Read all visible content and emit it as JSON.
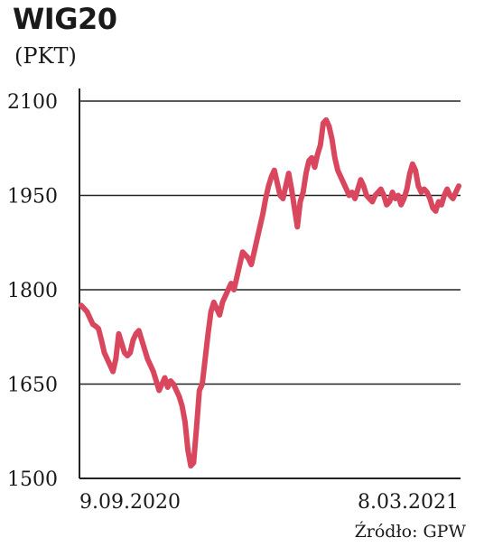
{
  "chart_data": {
    "type": "line",
    "title": "WIG20",
    "subtitle": "(PKT)",
    "xlabel": "",
    "ylabel": "",
    "ylim": [
      1500,
      2100
    ],
    "yticks": [
      "1500",
      "1650",
      "1800",
      "1950",
      "2100"
    ],
    "xtick_labels": [
      "9.09.2020",
      "8.03.2021"
    ],
    "grid": "horizontal",
    "legend": "none",
    "line_color": "#d9475e",
    "series": [
      {
        "values": [
          1775,
          1770,
          1765,
          1755,
          1745,
          1742,
          1738,
          1720,
          1700,
          1690,
          1680,
          1670,
          1690,
          1730,
          1715,
          1700,
          1695,
          1700,
          1720,
          1730,
          1735,
          1720,
          1705,
          1690,
          1680,
          1670,
          1655,
          1640,
          1650,
          1660,
          1645,
          1655,
          1650,
          1640,
          1630,
          1615,
          1590,
          1545,
          1520,
          1525,
          1580,
          1640,
          1650,
          1690,
          1730,
          1765,
          1780,
          1770,
          1760,
          1780,
          1790,
          1800,
          1810,
          1800,
          1820,
          1840,
          1860,
          1855,
          1850,
          1840,
          1860,
          1880,
          1900,
          1920,
          1945,
          1965,
          1980,
          1990,
          1970,
          1950,
          1945,
          1965,
          1985,
          1960,
          1930,
          1900,
          1940,
          1955,
          1985,
          2005,
          2010,
          1995,
          2015,
          2030,
          2065,
          2070,
          2060,
          2040,
          2010,
          1990,
          1980,
          1970,
          1960,
          1950,
          1955,
          1945,
          1960,
          1975,
          1965,
          1950,
          1945,
          1940,
          1950,
          1955,
          1960,
          1950,
          1935,
          1940,
          1955,
          1945,
          1950,
          1935,
          1945,
          1960,
          1985,
          2000,
          1990,
          1965,
          1955,
          1960,
          1955,
          1945,
          1930,
          1925,
          1940,
          1935,
          1950,
          1960,
          1950,
          1945,
          1955,
          1965
        ]
      }
    ],
    "source_note": "Źródło: GPW"
  }
}
